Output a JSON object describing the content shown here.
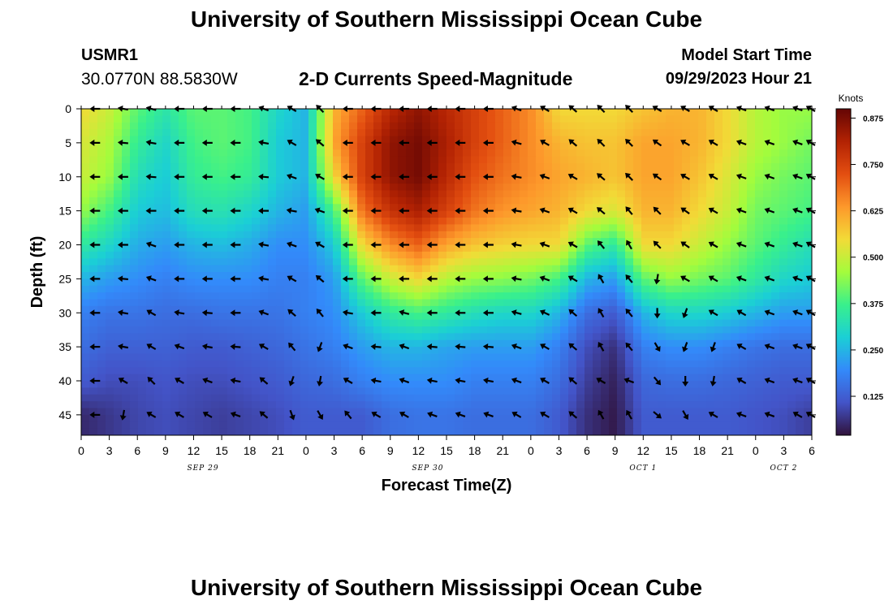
{
  "header": {
    "title": "University of Southern Mississippi Ocean Cube",
    "station_id": "USMR1",
    "station_coords": "30.0770N  88.5830W",
    "subtitle": "2-D Currents Speed-Magnitude",
    "model_label": "Model Start Time",
    "model_time": "09/29/2023 Hour 21"
  },
  "footer": {
    "title": "University of Southern Mississippi Ocean Cube"
  },
  "chart_data": {
    "type": "heatmap",
    "title": "2-D Currents Speed-Magnitude",
    "xlabel": "Forecast Time(Z)",
    "ylabel": "Depth (ft)",
    "x_hours_from_start": [
      0,
      3,
      6,
      9,
      12,
      15,
      18,
      21,
      24,
      27,
      30,
      33,
      36,
      39,
      42,
      45,
      48,
      51,
      54,
      57,
      60,
      63,
      66,
      69,
      72,
      75,
      78
    ],
    "x_tick_labels": [
      "0",
      "3",
      "6",
      "9",
      "12",
      "15",
      "18",
      "21",
      "0",
      "3",
      "6",
      "9",
      "12",
      "15",
      "18",
      "21",
      "0",
      "3",
      "6",
      "9",
      "12",
      "15",
      "18",
      "21",
      "0",
      "3",
      "6"
    ],
    "date_labels": [
      {
        "label": "SEP 29",
        "hour": 13
      },
      {
        "label": "SEP 30",
        "hour": 37
      },
      {
        "label": "OCT 1",
        "hour": 60
      },
      {
        "label": "OCT 2",
        "hour": 75
      }
    ],
    "y_ticks": [
      0,
      5,
      10,
      15,
      20,
      25,
      30,
      35,
      40,
      45
    ],
    "ylim": [
      0,
      48
    ],
    "depths_ft": [
      0,
      5,
      10,
      15,
      20,
      25,
      30,
      35,
      40,
      45
    ],
    "colorbar": {
      "title": "Knots",
      "range": [
        0.02,
        0.9
      ],
      "ticks": [
        "0.875",
        "0.750",
        "0.625",
        "0.500",
        "0.375",
        "0.250",
        "0.125"
      ],
      "tick_values": [
        0.875,
        0.75,
        0.625,
        0.5,
        0.375,
        0.25,
        0.125
      ]
    },
    "speed_knots": [
      [
        0.55,
        0.5,
        0.4,
        0.34,
        0.4,
        0.4,
        0.38,
        0.3,
        0.25,
        0.6,
        0.7,
        0.8,
        0.85,
        0.8,
        0.75,
        0.7,
        0.65,
        0.55,
        0.55,
        0.55,
        0.58,
        0.6,
        0.6,
        0.55,
        0.48,
        0.45,
        0.45
      ],
      [
        0.52,
        0.47,
        0.36,
        0.3,
        0.38,
        0.4,
        0.38,
        0.28,
        0.25,
        0.62,
        0.75,
        0.85,
        0.88,
        0.82,
        0.75,
        0.7,
        0.65,
        0.6,
        0.58,
        0.58,
        0.62,
        0.62,
        0.6,
        0.55,
        0.48,
        0.45,
        0.42
      ],
      [
        0.5,
        0.45,
        0.32,
        0.28,
        0.36,
        0.38,
        0.36,
        0.28,
        0.25,
        0.55,
        0.75,
        0.85,
        0.88,
        0.8,
        0.72,
        0.68,
        0.65,
        0.62,
        0.6,
        0.58,
        0.62,
        0.62,
        0.58,
        0.52,
        0.45,
        0.42,
        0.4
      ],
      [
        0.45,
        0.38,
        0.28,
        0.26,
        0.32,
        0.33,
        0.3,
        0.25,
        0.22,
        0.38,
        0.68,
        0.78,
        0.82,
        0.75,
        0.68,
        0.64,
        0.62,
        0.6,
        0.55,
        0.52,
        0.6,
        0.6,
        0.55,
        0.5,
        0.42,
        0.4,
        0.38
      ],
      [
        0.35,
        0.3,
        0.24,
        0.22,
        0.25,
        0.26,
        0.24,
        0.2,
        0.2,
        0.28,
        0.55,
        0.65,
        0.7,
        0.62,
        0.58,
        0.56,
        0.55,
        0.55,
        0.4,
        0.35,
        0.55,
        0.55,
        0.5,
        0.45,
        0.4,
        0.36,
        0.32
      ],
      [
        0.25,
        0.22,
        0.2,
        0.18,
        0.2,
        0.2,
        0.2,
        0.18,
        0.18,
        0.22,
        0.4,
        0.5,
        0.55,
        0.48,
        0.45,
        0.44,
        0.42,
        0.38,
        0.25,
        0.22,
        0.4,
        0.45,
        0.42,
        0.4,
        0.35,
        0.3,
        0.28
      ],
      [
        0.18,
        0.16,
        0.16,
        0.15,
        0.15,
        0.16,
        0.16,
        0.16,
        0.18,
        0.2,
        0.28,
        0.35,
        0.38,
        0.35,
        0.32,
        0.3,
        0.3,
        0.25,
        0.15,
        0.12,
        0.25,
        0.3,
        0.3,
        0.28,
        0.25,
        0.22,
        0.22
      ],
      [
        0.15,
        0.13,
        0.13,
        0.13,
        0.12,
        0.12,
        0.13,
        0.14,
        0.16,
        0.18,
        0.22,
        0.25,
        0.25,
        0.23,
        0.22,
        0.22,
        0.22,
        0.18,
        0.1,
        0.06,
        0.18,
        0.2,
        0.2,
        0.18,
        0.16,
        0.15,
        0.15
      ],
      [
        0.12,
        0.1,
        0.1,
        0.11,
        0.1,
        0.1,
        0.11,
        0.12,
        0.14,
        0.15,
        0.18,
        0.2,
        0.2,
        0.2,
        0.18,
        0.18,
        0.18,
        0.15,
        0.08,
        0.04,
        0.14,
        0.15,
        0.15,
        0.14,
        0.13,
        0.12,
        0.12
      ],
      [
        0.05,
        0.07,
        0.09,
        0.1,
        0.09,
        0.08,
        0.09,
        0.1,
        0.12,
        0.12,
        0.12,
        0.15,
        0.16,
        0.16,
        0.15,
        0.15,
        0.15,
        0.12,
        0.06,
        0.03,
        0.12,
        0.12,
        0.12,
        0.12,
        0.11,
        0.1,
        0.08
      ]
    ],
    "direction_deg": [
      [
        270,
        280,
        285,
        270,
        270,
        270,
        290,
        300,
        315,
        270,
        270,
        270,
        270,
        270,
        270,
        290,
        300,
        310,
        315,
        315,
        300,
        300,
        300,
        290,
        290,
        290,
        300
      ],
      [
        270,
        275,
        280,
        270,
        270,
        270,
        280,
        300,
        310,
        270,
        270,
        270,
        270,
        270,
        270,
        285,
        300,
        310,
        315,
        315,
        305,
        300,
        300,
        290,
        290,
        290,
        300
      ],
      [
        270,
        270,
        275,
        270,
        270,
        270,
        275,
        290,
        300,
        270,
        270,
        270,
        270,
        270,
        270,
        280,
        290,
        300,
        310,
        315,
        305,
        300,
        300,
        290,
        290,
        290,
        300
      ],
      [
        270,
        270,
        270,
        270,
        270,
        270,
        270,
        280,
        290,
        270,
        270,
        270,
        270,
        270,
        270,
        280,
        290,
        300,
        310,
        320,
        315,
        305,
        300,
        290,
        290,
        290,
        300
      ],
      [
        270,
        270,
        290,
        270,
        270,
        270,
        280,
        290,
        300,
        270,
        270,
        270,
        270,
        270,
        270,
        280,
        290,
        300,
        320,
        330,
        315,
        305,
        300,
        290,
        290,
        290,
        300
      ],
      [
        270,
        275,
        290,
        270,
        270,
        270,
        280,
        300,
        310,
        270,
        270,
        270,
        270,
        270,
        270,
        280,
        290,
        300,
        330,
        320,
        190,
        300,
        300,
        290,
        290,
        290,
        300
      ],
      [
        270,
        280,
        300,
        280,
        275,
        270,
        290,
        310,
        320,
        280,
        270,
        285,
        270,
        270,
        270,
        285,
        295,
        310,
        330,
        320,
        180,
        200,
        300,
        300,
        290,
        290,
        300
      ],
      [
        270,
        280,
        300,
        290,
        280,
        275,
        300,
        320,
        200,
        290,
        275,
        290,
        275,
        275,
        275,
        290,
        300,
        310,
        330,
        320,
        150,
        200,
        200,
        300,
        290,
        290,
        300
      ],
      [
        270,
        300,
        315,
        300,
        290,
        280,
        310,
        200,
        190,
        300,
        280,
        290,
        280,
        280,
        280,
        290,
        300,
        310,
        300,
        290,
        140,
        180,
        190,
        300,
        290,
        290,
        300
      ],
      [
        270,
        190,
        300,
        300,
        300,
        290,
        310,
        160,
        150,
        320,
        300,
        300,
        290,
        290,
        290,
        300,
        300,
        310,
        330,
        330,
        130,
        150,
        300,
        290,
        290,
        300,
        300
      ]
    ]
  }
}
